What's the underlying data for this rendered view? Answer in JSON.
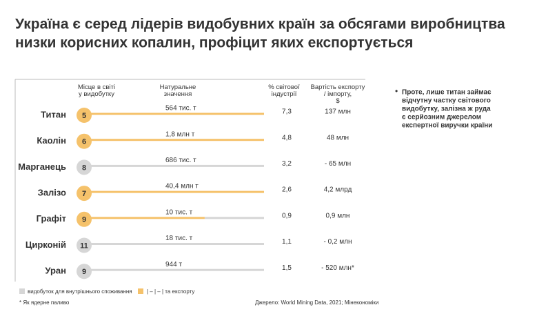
{
  "header": {
    "title": [
      "Україна є серед лідерів видобувних країн за обсягами виробництва",
      "низки корисних копалин, профіцит яких експортується"
    ]
  },
  "table": {
    "columns": [
      "Місце в світі у видобутку",
      "Натуральне значення",
      "% світової індустрії",
      "Вартість експорту / імпорту, $"
    ],
    "rows": [
      {
        "name": "Титан",
        "rank": "5",
        "volume": "564 тис. т",
        "share": "7,3",
        "trade": "137 млн",
        "export_share": 100
      },
      {
        "name": "Каолін",
        "rank": "6",
        "volume": "1,8 млн т",
        "share": "4,8",
        "trade": "48 млн",
        "export_share": 100
      },
      {
        "name": "Марганець",
        "rank": "8",
        "volume": "686 тис. т",
        "share": "3,2",
        "trade": "- 65 млн",
        "export_share": 0
      },
      {
        "name": "Залізо",
        "rank": "7",
        "volume": "40,4 млн т",
        "share": "2,6",
        "trade": "4,2 млрд",
        "export_share": 100
      },
      {
        "name": "Графіт",
        "rank": "9",
        "volume": "10 тис. т",
        "share": "0,9",
        "trade": "0,9 млн",
        "export_share": 67
      },
      {
        "name": "Цирконій",
        "rank": "11",
        "volume": "18 тис. т",
        "share": "1,1",
        "trade": "- 0,2 млн",
        "export_share": 0
      },
      {
        "name": "Уран",
        "rank": "9",
        "volume": "944 т",
        "share": "1,5",
        "trade": "- 520 млн*",
        "export_share": 0
      }
    ]
  },
  "legend": [
    "видобуток для внутрішнього споживання",
    "| – | – | та експорту"
  ],
  "footnote": "* Як ядерне паливо",
  "source": "Джерело: World Mining Data, 2021; Мінекономіки",
  "sidenote": [
    "Проте, лише титан займає",
    "відчутну частку світового",
    "видобутку, залізна ж руда",
    "є серйозним джерелом",
    "експертної виручки країни"
  ]
}
